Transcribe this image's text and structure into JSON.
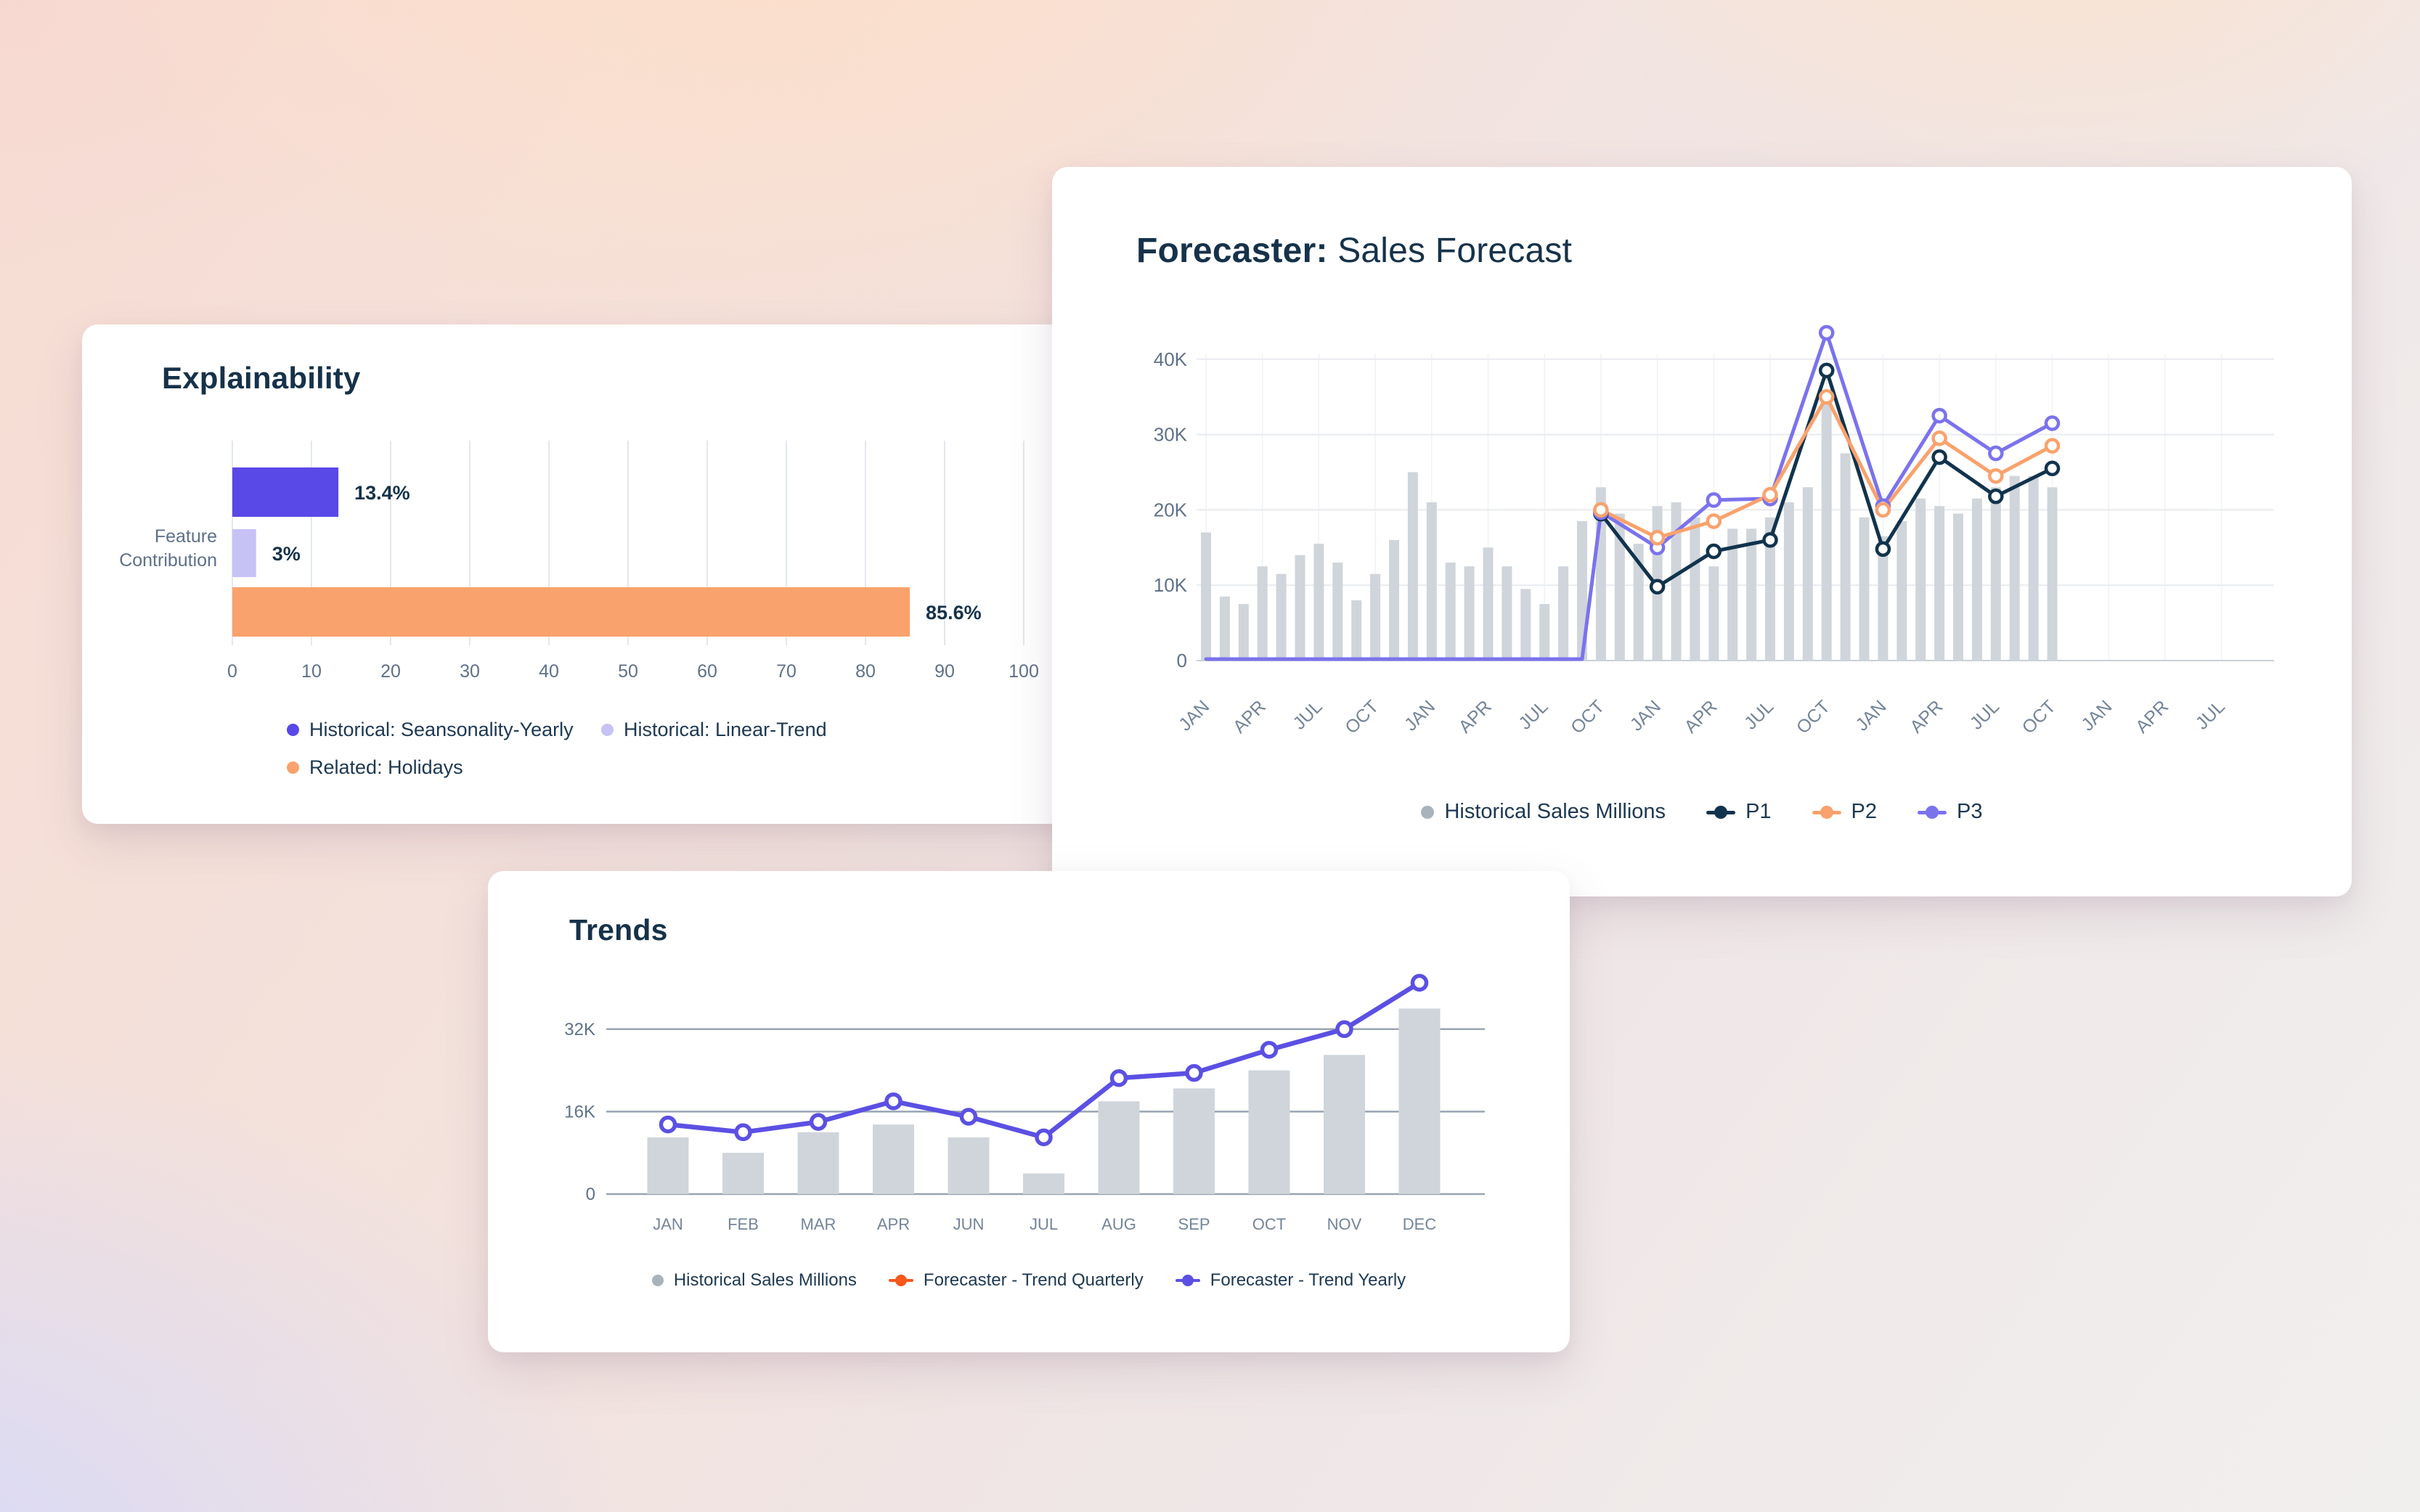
{
  "page": {
    "background_colors": {
      "top_left_pink": "#f7d8d1",
      "top_center_peach": "#fddfca",
      "bottom_left_periwinkle": "#d5d9fb",
      "bottom_right_neutral": "#f1efee"
    }
  },
  "cards": {
    "explainability": {
      "title": "Explainability",
      "legend": [
        {
          "label": "Historical: Seansonality-Yearly",
          "color": "#5949e6",
          "marker": "dot"
        },
        {
          "label": "Historical: Linear-Trend",
          "color": "#c6c2f5",
          "marker": "dot"
        },
        {
          "label": "Related: Holidays",
          "color": "#f9a26d",
          "marker": "dot"
        }
      ]
    },
    "forecaster": {
      "title_prefix": "Forecaster:",
      "title_rest": " Sales Forecast",
      "legend": [
        {
          "label": "Historical Sales Millions",
          "color": "#a9b3bc",
          "marker": "dot"
        },
        {
          "label": "P1",
          "color": "#11334d",
          "marker": "line-dot"
        },
        {
          "label": "P2",
          "color": "#f9a26d",
          "marker": "line-dot"
        },
        {
          "label": "P3",
          "color": "#7b72ee",
          "marker": "line-dot"
        }
      ]
    },
    "trends": {
      "title": "Trends",
      "legend": [
        {
          "label": "Historical Sales Millions",
          "color": "#a9b3bc",
          "marker": "dot"
        },
        {
          "label": "Forecaster - Trend Quarterly",
          "color": "#f4581c",
          "marker": "line-dot"
        },
        {
          "label": "Forecaster - Trend Yearly",
          "color": "#5b50e3",
          "marker": "line-dot"
        }
      ]
    }
  },
  "chart_data": [
    {
      "type": "bar",
      "orientation": "horizontal",
      "title": "Explainability",
      "ylabel_lines": [
        "Feature",
        "Contribution"
      ],
      "xlim": [
        0,
        100
      ],
      "x_ticks": [
        0,
        10,
        20,
        30,
        40,
        50,
        60,
        70,
        80,
        90,
        100
      ],
      "grid": "vertical",
      "legend_position": "bottom",
      "series": [
        {
          "name": "Historical: Seansonality-Yearly",
          "value": 13.4,
          "label": "13.4%",
          "color": "#5949e6"
        },
        {
          "name": "Historical: Linear-Trend",
          "value": 3,
          "label": "3%",
          "color": "#c6c2f5"
        },
        {
          "name": "Related: Holidays",
          "value": 85.6,
          "label": "85.6%",
          "color": "#f9a26d"
        }
      ]
    },
    {
      "type": "combo",
      "title": "Forecaster: Sales Forecast",
      "ylim": [
        0,
        45000
      ],
      "y_tick_values": [
        0,
        10000,
        20000,
        30000,
        40000
      ],
      "y_tick_labels": [
        "0",
        "10K",
        "20K",
        "30K",
        "40K"
      ],
      "x_tick_step_months": 3,
      "x_tick_labels": [
        "JAN",
        "APR",
        "JUL",
        "OCT",
        "JAN",
        "APR",
        "JUL",
        "OCT",
        "JAN",
        "APR",
        "JUL",
        "OCT",
        "JAN",
        "APR",
        "JUL",
        "OCT",
        "JAN",
        "APR",
        "JUL"
      ],
      "bar_series": "Historical Sales Millions",
      "bar_color": "#cfd5db",
      "bars": [
        17000,
        8500,
        7500,
        12500,
        11500,
        14000,
        15500,
        13000,
        8000,
        11500,
        16000,
        25000,
        21000,
        13000,
        12500,
        15000,
        12500,
        9500,
        7500,
        12500,
        18500,
        23000,
        19500,
        15500,
        20500,
        21000,
        19000,
        12500,
        17500,
        17500,
        19000,
        21000,
        23000,
        35500,
        27500,
        19000,
        16500,
        18500,
        21500,
        20500,
        19500,
        21500,
        23000,
        24500,
        24500,
        23000
      ],
      "forecast_months": [
        21,
        24,
        27,
        30,
        33,
        36,
        39,
        42,
        45
      ],
      "series": [
        {
          "name": "P1",
          "color": "#11334d",
          "values": [
            19500,
            9800,
            14500,
            16000,
            38500,
            14800,
            27000,
            21800,
            25500
          ]
        },
        {
          "name": "P2",
          "color": "#f9a26d",
          "values": [
            20000,
            16300,
            18500,
            22000,
            35000,
            20000,
            29500,
            24500,
            28500
          ]
        },
        {
          "name": "P3",
          "color": "#7b72ee",
          "values": [
            19700,
            15000,
            21300,
            21500,
            43500,
            20500,
            32500,
            27500,
            31500
          ],
          "history_zero": true
        }
      ],
      "legend_position": "bottom"
    },
    {
      "type": "combo",
      "title": "Trends",
      "categories": [
        "JAN",
        "FEB",
        "MAR",
        "APR",
        "JUN",
        "JUL",
        "AUG",
        "SEP",
        "OCT",
        "NOV",
        "DEC"
      ],
      "ylim": [
        0,
        44000
      ],
      "y_tick_values": [
        0,
        16000,
        32000
      ],
      "y_tick_labels": [
        "0",
        "16K",
        "32K"
      ],
      "bar_series": "Historical Sales Millions",
      "bar_color": "#cfd5da",
      "bars": [
        11000,
        8000,
        12000,
        13500,
        11000,
        4000,
        18000,
        20500,
        24000,
        27000,
        36000
      ],
      "line_series": "Forecaster - Trend Yearly",
      "line_color": "#5b50e3",
      "line": [
        13500,
        12000,
        14000,
        18000,
        15000,
        11000,
        22500,
        23500,
        28000,
        32000,
        41000
      ],
      "legend_position": "bottom"
    }
  ]
}
